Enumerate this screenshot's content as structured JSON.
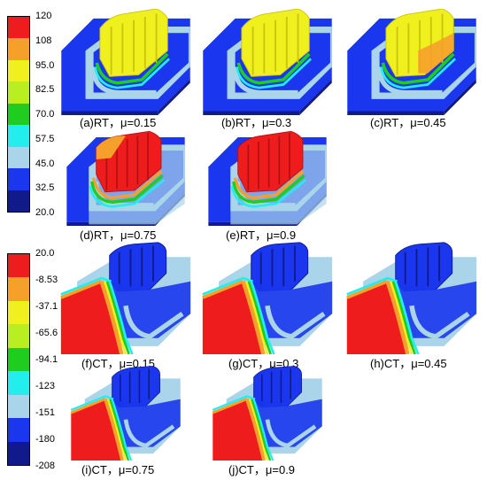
{
  "legend_rt": {
    "ticks": [
      "120",
      "108",
      "95.0",
      "82.5",
      "70.0",
      "57.5",
      "45.0",
      "32.5",
      "20.0"
    ],
    "colors": [
      "#ee1c1c",
      "#f5a02a",
      "#f0f01e",
      "#b9ee20",
      "#20cc20",
      "#22eeee",
      "#a9d4e9",
      "#1a36ee",
      "#101a8a"
    ]
  },
  "legend_ct": {
    "ticks": [
      "20.0",
      "-8.53",
      "-37.1",
      "-65.6",
      "-94.1",
      "-123",
      "-151",
      "-180",
      "-208"
    ],
    "colors": [
      "#ee1c1c",
      "#f5a02a",
      "#f0f01e",
      "#b9ee20",
      "#20cc20",
      "#22eeee",
      "#a9d4e9",
      "#1a36ee",
      "#101a8a"
    ]
  },
  "captions": {
    "a": "(a)RT，μ=0.15",
    "b": "(b)RT，μ=0.3",
    "c": "(c)RT，μ=0.45",
    "d": "(d)RT，μ=0.75",
    "e": "(e)RT，μ=0.9",
    "f": "(f)CT，μ=0.15",
    "g": "(g)CT，μ=0.3",
    "h": "(h)CT，μ=0.45",
    "i": "(i)CT，μ=0.75",
    "j": "(j)CT，μ=0.9"
  },
  "colors": {
    "block_blue": "#1a36ee",
    "block_dark": "#101a8a",
    "light_blue": "#a9d4e9",
    "cyan": "#22eeee",
    "green": "#20cc20",
    "yellow": "#f0f01e",
    "orange": "#f5a02a",
    "red": "#ee1c1c"
  }
}
